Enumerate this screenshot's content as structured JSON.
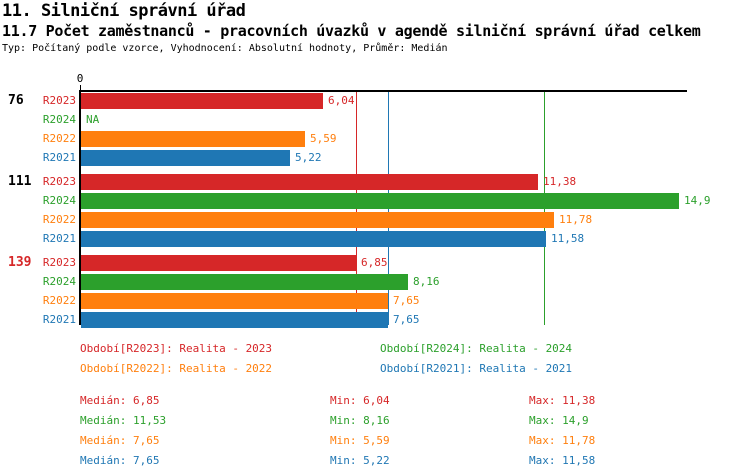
{
  "page": {
    "title": "11. Silniční správní úřad",
    "subtitle": "11.7 Počet zaměstnanců - pracovních úvazků v agendě silniční správní úřad celkem",
    "meta_line": "Typ: Počítaný podle vzorce, Vyhodnocení: Absolutní hodnoty, Průměr: Medián"
  },
  "colors": {
    "R2023": "#d62728",
    "R2024": "#2ca02c",
    "R2022": "#ff7f0e",
    "R2021": "#1f77b4",
    "axis": "#000000",
    "background": "#ffffff"
  },
  "chart_data": {
    "type": "bar",
    "orientation": "horizontal",
    "title": "11.7 Počet zaměstnanců - pracovních úvazků v agendě silniční správní úřad celkem",
    "x_origin_label": "0",
    "x_axis_range": [
      0,
      15.1
    ],
    "grid": "off",
    "legend_position": "bottom",
    "series_names": [
      "R2023",
      "R2024",
      "R2022",
      "R2021"
    ],
    "groups": [
      {
        "label": "76",
        "label_color": "#000000",
        "bars": [
          {
            "series": "R2023",
            "value": 6.04,
            "display": "6,04"
          },
          {
            "series": "R2024",
            "value": null,
            "display": "NA"
          },
          {
            "series": "R2022",
            "value": 5.59,
            "display": "5,59"
          },
          {
            "series": "R2021",
            "value": 5.22,
            "display": "5,22"
          }
        ]
      },
      {
        "label": "111",
        "label_color": "#000000",
        "bars": [
          {
            "series": "R2023",
            "value": 11.38,
            "display": "11,38"
          },
          {
            "series": "R2024",
            "value": 14.9,
            "display": "14,9"
          },
          {
            "series": "R2022",
            "value": 11.78,
            "display": "11,78"
          },
          {
            "series": "R2021",
            "value": 11.58,
            "display": "11,58"
          }
        ]
      },
      {
        "label": "139",
        "label_color": "#d62728",
        "bars": [
          {
            "series": "R2023",
            "value": 6.85,
            "display": "6,85"
          },
          {
            "series": "R2024",
            "value": 8.16,
            "display": "8,16"
          },
          {
            "series": "R2022",
            "value": 7.65,
            "display": "7,65"
          },
          {
            "series": "R2021",
            "value": 7.65,
            "display": "7,65"
          }
        ]
      }
    ],
    "median_lines": [
      {
        "series": "R2023",
        "value": 6.85
      },
      {
        "series": "R2024",
        "value": 11.53
      },
      {
        "series": "R2022",
        "value": 7.65
      },
      {
        "series": "R2021",
        "value": 7.65
      }
    ]
  },
  "legend": [
    {
      "series": "R2023",
      "label": "Období[R2023]: Realita - 2023"
    },
    {
      "series": "R2024",
      "label": "Období[R2024]: Realita - 2024"
    },
    {
      "series": "R2022",
      "label": "Období[R2022]: Realita - 2022"
    },
    {
      "series": "R2021",
      "label": "Období[R2021]: Realita - 2021"
    }
  ],
  "stats": {
    "labels": {
      "median": "Medián",
      "min": "Min",
      "max": "Max"
    },
    "rows": [
      {
        "series": "R2023",
        "median": "6,85",
        "min": "6,04",
        "max": "11,38"
      },
      {
        "series": "R2024",
        "median": "11,53",
        "min": "8,16",
        "max": "14,9"
      },
      {
        "series": "R2022",
        "median": "7,65",
        "min": "5,59",
        "max": "11,78"
      },
      {
        "series": "R2021",
        "median": "7,65",
        "min": "5,22",
        "max": "11,58"
      }
    ]
  }
}
